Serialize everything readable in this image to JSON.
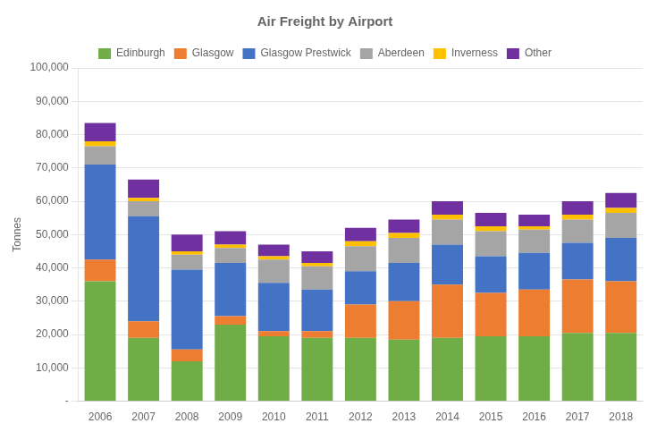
{
  "chart_data": {
    "type": "bar",
    "title": "Air Freight by Airport",
    "ylabel": "Tonnes",
    "categories": [
      "2006",
      "2007",
      "2008",
      "2009",
      "2010",
      "2011",
      "2012",
      "2013",
      "2014",
      "2015",
      "2016",
      "2017",
      "2018"
    ],
    "series": [
      {
        "name": "Edinburgh",
        "color": "#70AD47",
        "values": [
          36000,
          19000,
          12000,
          23000,
          19500,
          19000,
          19000,
          18500,
          19000,
          19500,
          19500,
          20500,
          20500
        ]
      },
      {
        "name": "Glasgow",
        "color": "#ED7D31",
        "values": [
          6500,
          5000,
          3500,
          2500,
          1500,
          2000,
          10000,
          11500,
          16000,
          13000,
          14000,
          16000,
          15500
        ]
      },
      {
        "name": "Glasgow Prestwick",
        "color": "#4472C4",
        "values": [
          28500,
          31500,
          24000,
          16000,
          14500,
          12500,
          10000,
          11500,
          12000,
          11000,
          11000,
          11000,
          13000
        ]
      },
      {
        "name": "Aberdeen",
        "color": "#A5A5A5",
        "values": [
          5500,
          4500,
          4500,
          4500,
          7000,
          7000,
          7500,
          7500,
          7500,
          7500,
          7000,
          7000,
          7500
        ]
      },
      {
        "name": "Inverness",
        "color": "#FFC000",
        "values": [
          1500,
          1000,
          1000,
          1000,
          1000,
          1000,
          1500,
          1500,
          1500,
          1500,
          1000,
          1500,
          1500
        ]
      },
      {
        "name": "Other",
        "color": "#7030A0",
        "values": [
          5500,
          5500,
          5000,
          4000,
          3500,
          3500,
          4000,
          4000,
          4000,
          4000,
          3500,
          4000,
          4500
        ]
      }
    ],
    "stacked": true,
    "ylim": [
      0,
      100000
    ],
    "yticks": [
      {
        "value": 0,
        "label": "-"
      },
      {
        "value": 10000,
        "label": "10,000"
      },
      {
        "value": 20000,
        "label": "20,000"
      },
      {
        "value": 30000,
        "label": "30,000"
      },
      {
        "value": 40000,
        "label": "40,000"
      },
      {
        "value": 50000,
        "label": "50,000"
      },
      {
        "value": 60000,
        "label": "60,000"
      },
      {
        "value": 70000,
        "label": "70,000"
      },
      {
        "value": 80000,
        "label": "80,000"
      },
      {
        "value": 90000,
        "label": "90,000"
      },
      {
        "value": 100000,
        "label": "100,000"
      }
    ],
    "grid": true,
    "legend": "top"
  }
}
